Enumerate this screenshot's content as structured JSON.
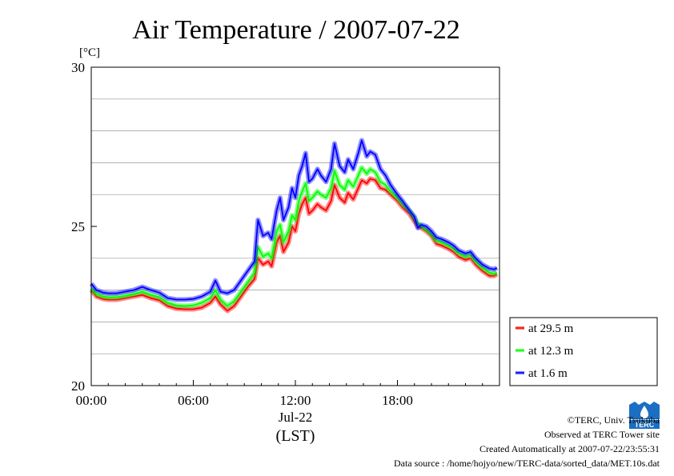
{
  "chart_data": {
    "type": "line",
    "title": "Air Temperature / 2007-07-22",
    "ylabel": "[°C]",
    "xlabel": "(LST)",
    "date_label": "Jul-22",
    "ylim": [
      20,
      30
    ],
    "xlim": [
      0,
      24
    ],
    "x_ticks": [
      0,
      6,
      12,
      18
    ],
    "x_tick_labels": [
      "00:00",
      "06:00",
      "12:00",
      "18:00"
    ],
    "y_ticks": [
      20,
      25,
      30
    ],
    "y_tick_labels": [
      "20",
      "25",
      "30"
    ],
    "y_gridlines": [
      21,
      22,
      23,
      24,
      26,
      27,
      28,
      29
    ],
    "grid": "horizontal",
    "legend_position": "bottom-right, outside plot",
    "series": [
      {
        "name": "at 29.5 m",
        "color": "#ff0000",
        "points": [
          [
            0,
            23.0
          ],
          [
            0.3,
            22.8
          ],
          [
            0.7,
            22.72
          ],
          [
            1,
            22.7
          ],
          [
            1.5,
            22.7
          ],
          [
            2,
            22.75
          ],
          [
            2.5,
            22.8
          ],
          [
            3,
            22.85
          ],
          [
            3.5,
            22.75
          ],
          [
            4,
            22.68
          ],
          [
            4.5,
            22.5
          ],
          [
            5,
            22.42
          ],
          [
            5.5,
            22.4
          ],
          [
            6,
            22.4
          ],
          [
            6.5,
            22.45
          ],
          [
            7,
            22.6
          ],
          [
            7.3,
            22.8
          ],
          [
            7.6,
            22.55
          ],
          [
            8,
            22.35
          ],
          [
            8.4,
            22.5
          ],
          [
            8.8,
            22.8
          ],
          [
            9.2,
            23.1
          ],
          [
            9.6,
            23.35
          ],
          [
            9.8,
            24.0
          ],
          [
            10.1,
            23.8
          ],
          [
            10.4,
            23.9
          ],
          [
            10.6,
            23.75
          ],
          [
            10.9,
            24.5
          ],
          [
            11.1,
            24.7
          ],
          [
            11.3,
            24.2
          ],
          [
            11.6,
            24.5
          ],
          [
            11.8,
            25.0
          ],
          [
            12.0,
            24.85
          ],
          [
            12.2,
            25.4
          ],
          [
            12.4,
            25.7
          ],
          [
            12.6,
            25.9
          ],
          [
            12.8,
            25.4
          ],
          [
            13.0,
            25.5
          ],
          [
            13.3,
            25.7
          ],
          [
            13.5,
            25.6
          ],
          [
            13.8,
            25.5
          ],
          [
            14.1,
            25.8
          ],
          [
            14.3,
            26.3
          ],
          [
            14.6,
            25.9
          ],
          [
            14.9,
            25.75
          ],
          [
            15.1,
            26.05
          ],
          [
            15.4,
            25.85
          ],
          [
            15.7,
            26.2
          ],
          [
            15.9,
            26.45
          ],
          [
            16.2,
            26.35
          ],
          [
            16.4,
            26.5
          ],
          [
            16.7,
            26.45
          ],
          [
            17.0,
            26.2
          ],
          [
            17.3,
            26.15
          ],
          [
            17.6,
            26.0
          ],
          [
            18.0,
            25.8
          ],
          [
            18.3,
            25.6
          ],
          [
            18.7,
            25.4
          ],
          [
            19.0,
            25.15
          ],
          [
            19.2,
            25.0
          ],
          [
            19.4,
            24.95
          ],
          [
            19.7,
            24.85
          ],
          [
            20.0,
            24.7
          ],
          [
            20.3,
            24.45
          ],
          [
            20.6,
            24.4
          ],
          [
            21.0,
            24.3
          ],
          [
            21.3,
            24.2
          ],
          [
            21.6,
            24.05
          ],
          [
            22.0,
            23.95
          ],
          [
            22.3,
            24.0
          ],
          [
            22.6,
            23.8
          ],
          [
            23.0,
            23.6
          ],
          [
            23.4,
            23.45
          ],
          [
            23.7,
            23.45
          ],
          [
            23.85,
            23.5
          ]
        ]
      },
      {
        "name": "at 12.3 m",
        "color": "#00ff00",
        "points": [
          [
            0,
            23.05
          ],
          [
            0.3,
            22.88
          ],
          [
            0.7,
            22.8
          ],
          [
            1,
            22.78
          ],
          [
            1.5,
            22.78
          ],
          [
            2,
            22.82
          ],
          [
            2.5,
            22.88
          ],
          [
            3,
            22.95
          ],
          [
            3.5,
            22.85
          ],
          [
            4,
            22.78
          ],
          [
            4.5,
            22.6
          ],
          [
            5,
            22.52
          ],
          [
            5.5,
            22.5
          ],
          [
            6,
            22.52
          ],
          [
            6.5,
            22.6
          ],
          [
            7,
            22.75
          ],
          [
            7.3,
            23.0
          ],
          [
            7.6,
            22.7
          ],
          [
            8,
            22.5
          ],
          [
            8.4,
            22.65
          ],
          [
            8.8,
            22.95
          ],
          [
            9.2,
            23.25
          ],
          [
            9.6,
            23.55
          ],
          [
            9.8,
            24.35
          ],
          [
            10.1,
            24.05
          ],
          [
            10.4,
            24.15
          ],
          [
            10.6,
            24.0
          ],
          [
            10.9,
            24.85
          ],
          [
            11.1,
            25.05
          ],
          [
            11.3,
            24.5
          ],
          [
            11.6,
            24.85
          ],
          [
            11.8,
            25.35
          ],
          [
            12.0,
            25.2
          ],
          [
            12.2,
            25.8
          ],
          [
            12.4,
            26.1
          ],
          [
            12.6,
            26.35
          ],
          [
            12.8,
            25.8
          ],
          [
            13.0,
            25.9
          ],
          [
            13.3,
            26.1
          ],
          [
            13.5,
            26.0
          ],
          [
            13.8,
            25.9
          ],
          [
            14.1,
            26.2
          ],
          [
            14.3,
            26.75
          ],
          [
            14.6,
            26.3
          ],
          [
            14.9,
            26.15
          ],
          [
            15.1,
            26.45
          ],
          [
            15.4,
            26.25
          ],
          [
            15.7,
            26.6
          ],
          [
            15.9,
            26.85
          ],
          [
            16.2,
            26.65
          ],
          [
            16.4,
            26.8
          ],
          [
            16.7,
            26.7
          ],
          [
            17.0,
            26.4
          ],
          [
            17.3,
            26.3
          ],
          [
            17.6,
            26.1
          ],
          [
            18.0,
            25.9
          ],
          [
            18.3,
            25.7
          ],
          [
            18.7,
            25.5
          ],
          [
            19.0,
            25.25
          ],
          [
            19.2,
            25.1
          ],
          [
            19.4,
            25.0
          ],
          [
            19.7,
            24.9
          ],
          [
            20.0,
            24.75
          ],
          [
            20.3,
            24.55
          ],
          [
            20.6,
            24.5
          ],
          [
            21.0,
            24.4
          ],
          [
            21.3,
            24.3
          ],
          [
            21.6,
            24.15
          ],
          [
            22.0,
            24.05
          ],
          [
            22.3,
            24.1
          ],
          [
            22.6,
            23.9
          ],
          [
            23.0,
            23.7
          ],
          [
            23.4,
            23.55
          ],
          [
            23.7,
            23.52
          ],
          [
            23.85,
            23.55
          ]
        ]
      },
      {
        "name": "at 1.6 m",
        "color": "#0000ff",
        "points": [
          [
            0,
            23.2
          ],
          [
            0.3,
            23.0
          ],
          [
            0.7,
            22.92
          ],
          [
            1,
            22.9
          ],
          [
            1.5,
            22.9
          ],
          [
            2,
            22.95
          ],
          [
            2.5,
            23.0
          ],
          [
            3,
            23.1
          ],
          [
            3.5,
            23.0
          ],
          [
            4,
            22.92
          ],
          [
            4.5,
            22.75
          ],
          [
            5,
            22.7
          ],
          [
            5.5,
            22.7
          ],
          [
            6,
            22.72
          ],
          [
            6.5,
            22.8
          ],
          [
            7,
            22.95
          ],
          [
            7.3,
            23.3
          ],
          [
            7.6,
            22.95
          ],
          [
            8,
            22.9
          ],
          [
            8.4,
            23.0
          ],
          [
            8.8,
            23.3
          ],
          [
            9.2,
            23.6
          ],
          [
            9.6,
            23.9
          ],
          [
            9.8,
            25.2
          ],
          [
            10.1,
            24.7
          ],
          [
            10.4,
            24.8
          ],
          [
            10.6,
            24.6
          ],
          [
            10.9,
            25.5
          ],
          [
            11.1,
            25.9
          ],
          [
            11.3,
            25.2
          ],
          [
            11.6,
            25.6
          ],
          [
            11.8,
            26.2
          ],
          [
            12.0,
            25.9
          ],
          [
            12.2,
            26.6
          ],
          [
            12.4,
            26.9
          ],
          [
            12.6,
            27.3
          ],
          [
            12.8,
            26.4
          ],
          [
            13.0,
            26.5
          ],
          [
            13.3,
            26.8
          ],
          [
            13.5,
            26.6
          ],
          [
            13.8,
            26.4
          ],
          [
            14.1,
            26.8
          ],
          [
            14.3,
            27.6
          ],
          [
            14.6,
            26.9
          ],
          [
            14.9,
            26.7
          ],
          [
            15.1,
            27.1
          ],
          [
            15.4,
            26.8
          ],
          [
            15.7,
            27.3
          ],
          [
            15.9,
            27.7
          ],
          [
            16.2,
            27.2
          ],
          [
            16.4,
            27.35
          ],
          [
            16.7,
            27.25
          ],
          [
            17.0,
            26.8
          ],
          [
            17.3,
            26.6
          ],
          [
            17.6,
            26.3
          ],
          [
            18.0,
            26.0
          ],
          [
            18.3,
            25.8
          ],
          [
            18.7,
            25.5
          ],
          [
            19.0,
            25.3
          ],
          [
            19.2,
            24.95
          ],
          [
            19.4,
            25.05
          ],
          [
            19.7,
            25.0
          ],
          [
            20.0,
            24.85
          ],
          [
            20.3,
            24.65
          ],
          [
            20.6,
            24.6
          ],
          [
            21.0,
            24.5
          ],
          [
            21.3,
            24.4
          ],
          [
            21.6,
            24.25
          ],
          [
            22.0,
            24.15
          ],
          [
            22.3,
            24.2
          ],
          [
            22.6,
            24.0
          ],
          [
            23.0,
            23.8
          ],
          [
            23.4,
            23.68
          ],
          [
            23.7,
            23.65
          ],
          [
            23.85,
            23.7
          ]
        ]
      }
    ]
  },
  "footer": {
    "copyright": "©TERC, Univ. Tsukuba",
    "observed": "Observed at TERC Tower site",
    "created": "Created Automatically at 2007-07-22/23:55:31",
    "source": "Data source : /home/hojyo/new/TERC-data/sorted_data/MET.10s.dat"
  },
  "logo_text": "TERC"
}
